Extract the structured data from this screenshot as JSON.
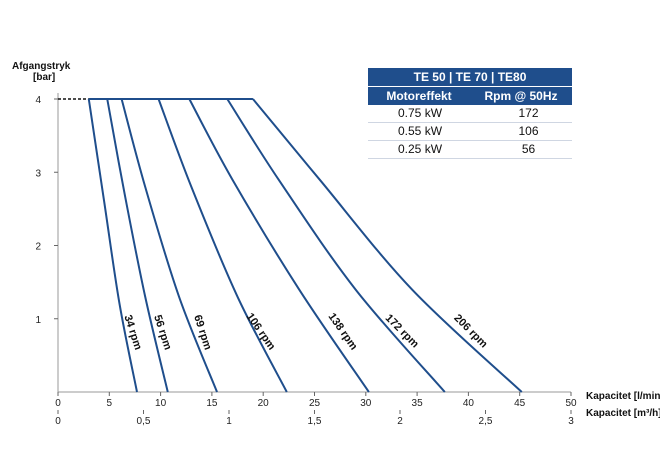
{
  "chart_data": {
    "type": "line",
    "ylabel": "Afgangstryk",
    "yunit": "[bar]",
    "xlabel": "Kapacitet [l/min]",
    "x2label": "Kapacitet [m³/h]",
    "xlim": [
      0,
      50
    ],
    "ylim": [
      0,
      4
    ],
    "x_ticks": [
      "0",
      "5",
      "10",
      "15",
      "20",
      "25",
      "30",
      "35",
      "40",
      "45",
      "50"
    ],
    "x2_ticks": [
      "0",
      "0,5",
      "1",
      "1,5",
      "2",
      "2,5",
      "3"
    ],
    "y_ticks": [
      "1",
      "2",
      "3",
      "4"
    ],
    "dashed_line": {
      "x": [
        0,
        3
      ],
      "y": [
        4,
        4
      ]
    },
    "series": [
      {
        "name": "34 rpm",
        "x": [
          3.0,
          4.5,
          6.0,
          7.7
        ],
        "y": [
          4,
          2.6,
          1.2,
          0
        ]
      },
      {
        "name": "56 rpm",
        "x": [
          4.8,
          6.5,
          8.5,
          10.7
        ],
        "y": [
          4,
          2.7,
          1.3,
          0
        ]
      },
      {
        "name": "69 rpm",
        "x": [
          6.2,
          8.5,
          11.8,
          15.5
        ],
        "y": [
          4,
          2.8,
          1.3,
          0
        ]
      },
      {
        "name": "106 rpm",
        "x": [
          9.8,
          13.0,
          17.5,
          22.3
        ],
        "y": [
          4,
          2.8,
          1.3,
          0
        ]
      },
      {
        "name": "138 rpm",
        "x": [
          12.8,
          17.0,
          23.5,
          30.3
        ],
        "y": [
          4,
          2.9,
          1.4,
          0
        ]
      },
      {
        "name": "172 rpm",
        "x": [
          16.5,
          21.5,
          29.0,
          37.7
        ],
        "y": [
          4,
          2.9,
          1.4,
          0
        ]
      },
      {
        "name": "206 rpm",
        "x": [
          19.0,
          25.5,
          34.5,
          45.2
        ],
        "y": [
          4,
          2.9,
          1.4,
          0
        ]
      }
    ],
    "series_label_points": [
      {
        "x": 7.0,
        "y": 0.8
      },
      {
        "x": 9.9,
        "y": 0.8
      },
      {
        "x": 13.8,
        "y": 0.8
      },
      {
        "x": 19.5,
        "y": 0.8
      },
      {
        "x": 27.5,
        "y": 0.8
      },
      {
        "x": 33.3,
        "y": 0.8
      },
      {
        "x": 40.0,
        "y": 0.8
      }
    ]
  },
  "legend": {
    "title": "TE 50 | TE 70 | TE80",
    "col_power": "Motoreffekt",
    "col_rpm": "Rpm @ 50Hz",
    "rows": [
      {
        "power": "0.75 kW",
        "rpm": "172"
      },
      {
        "power": "0.55 kW",
        "rpm": "106"
      },
      {
        "power": "0.25 kW",
        "rpm": "56"
      }
    ]
  },
  "colors": {
    "curve": "#1f4e8c",
    "header": "#1f4e8c"
  }
}
